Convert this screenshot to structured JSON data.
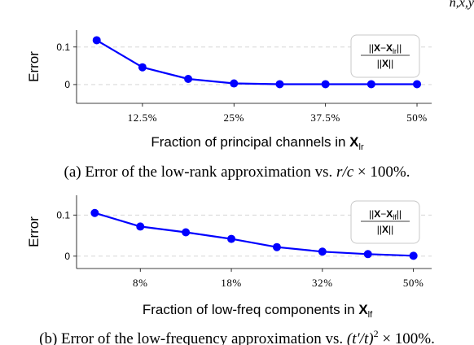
{
  "header_fragment": "n,x,y",
  "chart_data": [
    {
      "type": "line",
      "title": "",
      "ylabel": "Error",
      "xlabel": "Fraction of principal channels in ",
      "xlabel_bold": "X",
      "xlabel_sub": "lr",
      "x": [
        6.25,
        12.5,
        18.75,
        25,
        31.25,
        37.5,
        43.75,
        50
      ],
      "values": [
        0.118,
        0.046,
        0.015,
        0.003,
        0.001,
        0.001,
        0.001,
        0.001
      ],
      "xlim": [
        3.5,
        52
      ],
      "ylim": [
        -0.05,
        0.145
      ],
      "xticks": [
        12.5,
        25,
        37.5,
        50
      ],
      "xtick_labels": [
        "12.5%",
        "25%",
        "37.5%",
        "50%"
      ],
      "yticks": [
        0,
        0.1
      ],
      "ytick_labels": [
        "0",
        "0.1"
      ],
      "grid": true,
      "legend": {
        "placement": "top-right",
        "formula_num_a": "X",
        "formula_num_b": "X",
        "formula_num_sub": "lr",
        "formula_den": "X"
      },
      "color": "#0000ff",
      "caption_prefix": "(a) Error of the low-rank approximation vs. ",
      "caption_math": "r/c",
      "caption_suffix": " × 100%."
    },
    {
      "type": "line",
      "title": "",
      "ylabel": "Error",
      "xlabel": "Fraction of low-freq components in ",
      "xlabel_bold": "X",
      "xlabel_sub": "lf",
      "x": [
        1,
        2,
        3,
        4,
        5,
        6,
        7,
        8
      ],
      "values": [
        0.105,
        0.072,
        0.058,
        0.042,
        0.022,
        0.011,
        0.005,
        0.001
      ],
      "xlim": [
        0.6,
        8.4
      ],
      "ylim": [
        -0.03,
        0.148
      ],
      "xticks": [
        2,
        4,
        6,
        8
      ],
      "xtick_labels": [
        "8%",
        "18%",
        "32%",
        "50%"
      ],
      "yticks": [
        0,
        0.1
      ],
      "ytick_labels": [
        "0",
        "0.1"
      ],
      "grid": true,
      "legend": {
        "placement": "top-right",
        "formula_num_a": "X",
        "formula_num_b": "X",
        "formula_num_sub": "lf",
        "formula_den": "X"
      },
      "color": "#0000ff",
      "caption_prefix": "(b) Error of the low-frequency approximation vs. ",
      "caption_math": "(t′/t)",
      "caption_exp": "2",
      "caption_suffix": " × 100%."
    }
  ]
}
